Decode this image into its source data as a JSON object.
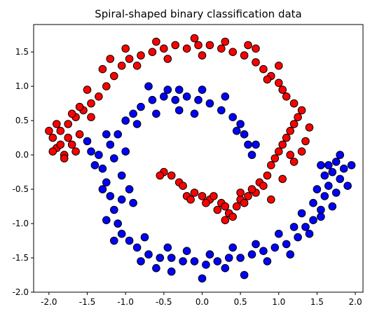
{
  "chart_data": {
    "type": "scatter",
    "title": "Spiral-shaped binary classification data",
    "xlabel": "",
    "ylabel": "",
    "xlim": [
      -2.2,
      2.1
    ],
    "ylim": [
      -2.0,
      1.9
    ],
    "grid": false,
    "x_ticks": [
      "-2.0",
      "-1.5",
      "-1.0",
      "-0.5",
      "0.0",
      "0.5",
      "1.0",
      "1.5",
      "2.0"
    ],
    "x_tick_values": [
      -2.0,
      -1.5,
      -1.0,
      -0.5,
      0.0,
      0.5,
      1.0,
      1.5,
      2.0
    ],
    "y_ticks": [
      "-2.0",
      "-1.5",
      "-1.0",
      "-0.5",
      "0.0",
      "0.5",
      "1.0",
      "1.5"
    ],
    "y_tick_values": [
      -2.0,
      -1.5,
      -1.0,
      -0.5,
      0.0,
      0.5,
      1.0,
      1.5
    ],
    "series": [
      {
        "color": "#ff0000",
        "points": [
          [
            -0.4,
            -0.3
          ],
          [
            -0.3,
            -0.4
          ],
          [
            -0.5,
            -0.25
          ],
          [
            -0.25,
            -0.45
          ],
          [
            -0.2,
            -0.6
          ],
          [
            -0.1,
            -0.55
          ],
          [
            0.0,
            -0.6
          ],
          [
            0.1,
            -0.65
          ],
          [
            0.15,
            -0.6
          ],
          [
            0.25,
            -0.7
          ],
          [
            0.3,
            -0.75
          ],
          [
            0.35,
            -0.85
          ],
          [
            0.4,
            -0.9
          ],
          [
            0.3,
            -0.95
          ],
          [
            0.45,
            -0.75
          ],
          [
            0.5,
            -0.65
          ],
          [
            0.55,
            -0.7
          ],
          [
            0.6,
            -0.6
          ],
          [
            0.7,
            -0.55
          ],
          [
            0.75,
            -0.4
          ],
          [
            0.85,
            -0.3
          ],
          [
            0.9,
            -0.15
          ],
          [
            0.95,
            -0.05
          ],
          [
            1.0,
            0.05
          ],
          [
            1.05,
            0.15
          ],
          [
            1.1,
            0.25
          ],
          [
            1.15,
            0.35
          ],
          [
            1.2,
            0.45
          ],
          [
            1.25,
            0.55
          ],
          [
            1.3,
            0.65
          ],
          [
            1.2,
            0.75
          ],
          [
            1.1,
            0.85
          ],
          [
            1.05,
            0.95
          ],
          [
            1.0,
            1.05
          ],
          [
            0.9,
            1.15
          ],
          [
            0.8,
            1.25
          ],
          [
            0.7,
            1.35
          ],
          [
            0.55,
            1.45
          ],
          [
            0.4,
            1.5
          ],
          [
            0.25,
            1.55
          ],
          [
            0.1,
            1.6
          ],
          [
            -0.05,
            1.6
          ],
          [
            -0.2,
            1.55
          ],
          [
            -0.35,
            1.6
          ],
          [
            -0.5,
            1.55
          ],
          [
            -0.65,
            1.5
          ],
          [
            -0.8,
            1.45
          ],
          [
            -0.95,
            1.4
          ],
          [
            -1.05,
            1.3
          ],
          [
            -1.15,
            1.15
          ],
          [
            -1.25,
            1.0
          ],
          [
            -1.35,
            0.85
          ],
          [
            -1.45,
            0.75
          ],
          [
            -1.55,
            0.65
          ],
          [
            -1.65,
            0.55
          ],
          [
            -1.75,
            0.45
          ],
          [
            -1.85,
            0.35
          ],
          [
            -1.95,
            0.25
          ],
          [
            -1.9,
            0.1
          ],
          [
            -1.8,
            0.0
          ],
          [
            -1.7,
            0.15
          ],
          [
            -1.6,
            0.3
          ],
          [
            -1.75,
            0.25
          ],
          [
            -1.85,
            0.15
          ],
          [
            -1.95,
            0.05
          ],
          [
            1.0,
            1.3
          ],
          [
            0.85,
            1.1
          ],
          [
            0.6,
            1.6
          ],
          [
            0.3,
            1.65
          ],
          [
            -0.1,
            1.7
          ],
          [
            -0.6,
            1.65
          ],
          [
            -1.0,
            1.55
          ],
          [
            -1.3,
            1.25
          ],
          [
            -1.5,
            0.95
          ],
          [
            -1.7,
            0.6
          ],
          [
            -2.0,
            0.35
          ],
          [
            1.35,
            0.2
          ],
          [
            1.15,
            0.0
          ],
          [
            0.8,
            -0.45
          ],
          [
            0.2,
            -0.8
          ],
          [
            -0.15,
            -0.65
          ],
          [
            -0.55,
            -0.3
          ],
          [
            0.65,
            -0.5
          ],
          [
            0.9,
            -0.65
          ],
          [
            1.05,
            -0.35
          ],
          [
            1.2,
            -0.1
          ],
          [
            1.3,
            0.05
          ],
          [
            1.4,
            0.4
          ],
          [
            0.7,
            1.55
          ],
          [
            0.0,
            1.45
          ],
          [
            -0.45,
            1.4
          ],
          [
            -0.85,
            1.3
          ],
          [
            -1.2,
            1.4
          ],
          [
            -1.45,
            0.55
          ],
          [
            -1.6,
            0.7
          ],
          [
            -1.9,
            0.45
          ],
          [
            -1.8,
            -0.05
          ],
          [
            -1.65,
            0.05
          ],
          [
            0.5,
            -0.55
          ],
          [
            0.05,
            -0.7
          ]
        ]
      },
      {
        "color": "#0000ff",
        "points": [
          [
            -1.5,
            0.2
          ],
          [
            -1.35,
            0.0
          ],
          [
            -1.3,
            -0.2
          ],
          [
            -1.25,
            -0.4
          ],
          [
            -1.2,
            -0.6
          ],
          [
            -1.15,
            -0.8
          ],
          [
            -1.1,
            -1.0
          ],
          [
            -1.05,
            -1.15
          ],
          [
            -0.95,
            -1.25
          ],
          [
            -0.85,
            -1.35
          ],
          [
            -0.7,
            -1.45
          ],
          [
            -0.55,
            -1.5
          ],
          [
            -0.4,
            -1.5
          ],
          [
            -0.25,
            -1.55
          ],
          [
            -0.1,
            -1.55
          ],
          [
            0.05,
            -1.6
          ],
          [
            0.2,
            -1.55
          ],
          [
            0.35,
            -1.5
          ],
          [
            0.5,
            -1.5
          ],
          [
            0.65,
            -1.45
          ],
          [
            0.8,
            -1.4
          ],
          [
            0.95,
            -1.35
          ],
          [
            1.1,
            -1.3
          ],
          [
            1.25,
            -1.2
          ],
          [
            1.35,
            -1.05
          ],
          [
            1.45,
            -0.95
          ],
          [
            1.55,
            -0.8
          ],
          [
            1.6,
            -0.6
          ],
          [
            1.65,
            -0.45
          ],
          [
            1.6,
            -0.3
          ],
          [
            1.65,
            -0.15
          ],
          [
            1.75,
            -0.1
          ],
          [
            1.85,
            -0.2
          ],
          [
            1.8,
            -0.35
          ],
          [
            1.9,
            -0.45
          ],
          [
            1.75,
            -0.55
          ],
          [
            1.7,
            -0.75
          ],
          [
            1.55,
            -0.9
          ],
          [
            -1.1,
            0.3
          ],
          [
            -1.0,
            0.5
          ],
          [
            -0.9,
            0.6
          ],
          [
            -0.8,
            0.7
          ],
          [
            -0.65,
            0.8
          ],
          [
            -0.5,
            0.85
          ],
          [
            -0.35,
            0.8
          ],
          [
            -0.2,
            0.85
          ],
          [
            -0.05,
            0.8
          ],
          [
            0.1,
            0.75
          ],
          [
            0.25,
            0.65
          ],
          [
            0.4,
            0.55
          ],
          [
            0.5,
            0.45
          ],
          [
            0.55,
            0.3
          ],
          [
            0.6,
            0.15
          ],
          [
            -1.05,
            -0.3
          ],
          [
            -0.95,
            -0.5
          ],
          [
            -0.9,
            -0.7
          ],
          [
            -1.0,
            0.05
          ],
          [
            -1.2,
            0.15
          ],
          [
            -1.4,
            -0.15
          ],
          [
            -1.3,
            -0.5
          ],
          [
            -1.15,
            -1.25
          ],
          [
            -0.8,
            -1.55
          ],
          [
            -0.6,
            -1.65
          ],
          [
            -0.4,
            -1.7
          ],
          [
            0.0,
            -1.8
          ],
          [
            0.3,
            -1.65
          ],
          [
            0.55,
            -1.75
          ],
          [
            0.85,
            -1.55
          ],
          [
            1.15,
            -1.45
          ],
          [
            1.4,
            -1.15
          ],
          [
            1.5,
            -0.5
          ],
          [
            1.95,
            -0.15
          ],
          [
            1.8,
            0.0
          ],
          [
            -0.45,
            0.95
          ],
          [
            -0.3,
            0.95
          ],
          [
            0.0,
            0.95
          ],
          [
            0.3,
            0.85
          ],
          [
            0.65,
            0.0
          ],
          [
            -0.7,
            1.0
          ],
          [
            -0.6,
            0.6
          ],
          [
            -0.3,
            0.65
          ],
          [
            -1.25,
            -0.95
          ],
          [
            -1.05,
            -0.65
          ],
          [
            -0.75,
            -1.2
          ],
          [
            -0.45,
            -1.35
          ],
          [
            -0.2,
            -1.4
          ],
          [
            0.1,
            -1.45
          ],
          [
            0.4,
            -1.35
          ],
          [
            0.7,
            -1.3
          ],
          [
            1.0,
            -1.15
          ],
          [
            1.2,
            -1.05
          ],
          [
            1.3,
            -0.85
          ],
          [
            1.45,
            -0.7
          ],
          [
            1.7,
            -0.25
          ],
          [
            1.55,
            -0.15
          ],
          [
            -1.15,
            -0.05
          ],
          [
            -1.45,
            0.05
          ],
          [
            -1.25,
            0.3
          ],
          [
            -0.85,
            0.45
          ],
          [
            0.45,
            0.35
          ],
          [
            0.7,
            0.15
          ],
          [
            -0.1,
            0.6
          ]
        ]
      }
    ]
  }
}
